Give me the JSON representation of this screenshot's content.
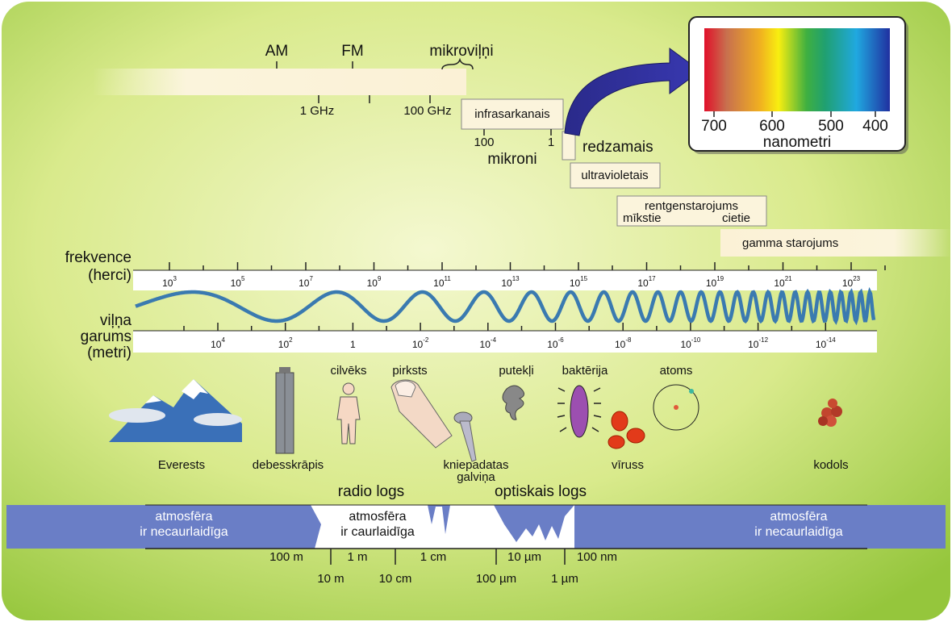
{
  "radio": {
    "am": "AM",
    "fm": "FM",
    "microwaves": "mikroviļņi",
    "tick_1ghz": "1 GHz",
    "tick_100ghz": "100 GHz"
  },
  "infrared": {
    "label": "infrasarkanais",
    "tick_100": "100",
    "tick_1": "1",
    "unit": "mikroni"
  },
  "visible": "redzamais",
  "ultraviolet": "ultravioletais",
  "xray": {
    "label": "rentgenstarojums",
    "soft": "mīkstie",
    "hard": "cietie"
  },
  "gamma": "gamma starojums",
  "spectrum_inset": {
    "ticks": [
      "700",
      "600",
      "500",
      "400"
    ],
    "unit": "nanometri"
  },
  "frequency": {
    "label": [
      "frekvence",
      "(herci)"
    ],
    "ticks": [
      {
        "base": "10",
        "exp": "3"
      },
      {
        "base": "10",
        "exp": "5"
      },
      {
        "base": "10",
        "exp": "7"
      },
      {
        "base": "10",
        "exp": "9"
      },
      {
        "base": "10",
        "exp": "11"
      },
      {
        "base": "10",
        "exp": "13"
      },
      {
        "base": "10",
        "exp": "15"
      },
      {
        "base": "10",
        "exp": "17"
      },
      {
        "base": "10",
        "exp": "19"
      },
      {
        "base": "10",
        "exp": "21"
      },
      {
        "base": "10",
        "exp": "23"
      }
    ]
  },
  "wavelength": {
    "label": [
      "viļņa",
      "garums",
      "(metri)"
    ],
    "ticks": [
      {
        "base": "10",
        "exp": "4"
      },
      {
        "base": "10",
        "exp": "2"
      },
      {
        "base": "1"
      },
      {
        "base": "10",
        "exp": "-2"
      },
      {
        "base": "10",
        "exp": "-4"
      },
      {
        "base": "10",
        "exp": "-6"
      },
      {
        "base": "10",
        "exp": "-8"
      },
      {
        "base": "10",
        "exp": "-10"
      },
      {
        "base": "10",
        "exp": "-12"
      },
      {
        "base": "10",
        "exp": "-14"
      }
    ]
  },
  "objects": [
    {
      "lines": [
        "Everests"
      ]
    },
    {
      "lines": [
        "debesskrāpis"
      ]
    },
    {
      "lines": [
        "cilvēks"
      ]
    },
    {
      "lines": [
        "pirksts"
      ]
    },
    {
      "lines": [
        "kniepadatas",
        "galviņa"
      ]
    },
    {
      "lines": [
        "putekļi"
      ]
    },
    {
      "lines": [
        "baktērija"
      ]
    },
    {
      "lines": [
        "vīruss"
      ]
    },
    {
      "lines": [
        "atoms"
      ]
    },
    {
      "lines": [
        "kodols"
      ]
    }
  ],
  "atmosphere": {
    "radio_window": "radio logs",
    "optical_window": "optiskais logs",
    "left": [
      "atmosfēra",
      "ir necaurlaidīga"
    ],
    "middle": [
      "atmosfēra",
      "ir caurlaidīga"
    ],
    "right": [
      "atmosfēra",
      "ir necaurlaidīga"
    ],
    "scale_upper": [
      "100 m",
      "1 m",
      "1 cm",
      "10 µm",
      "100 nm"
    ],
    "scale_lower": [
      "10 m",
      "10 cm",
      "100 µm",
      "1 µm"
    ]
  }
}
